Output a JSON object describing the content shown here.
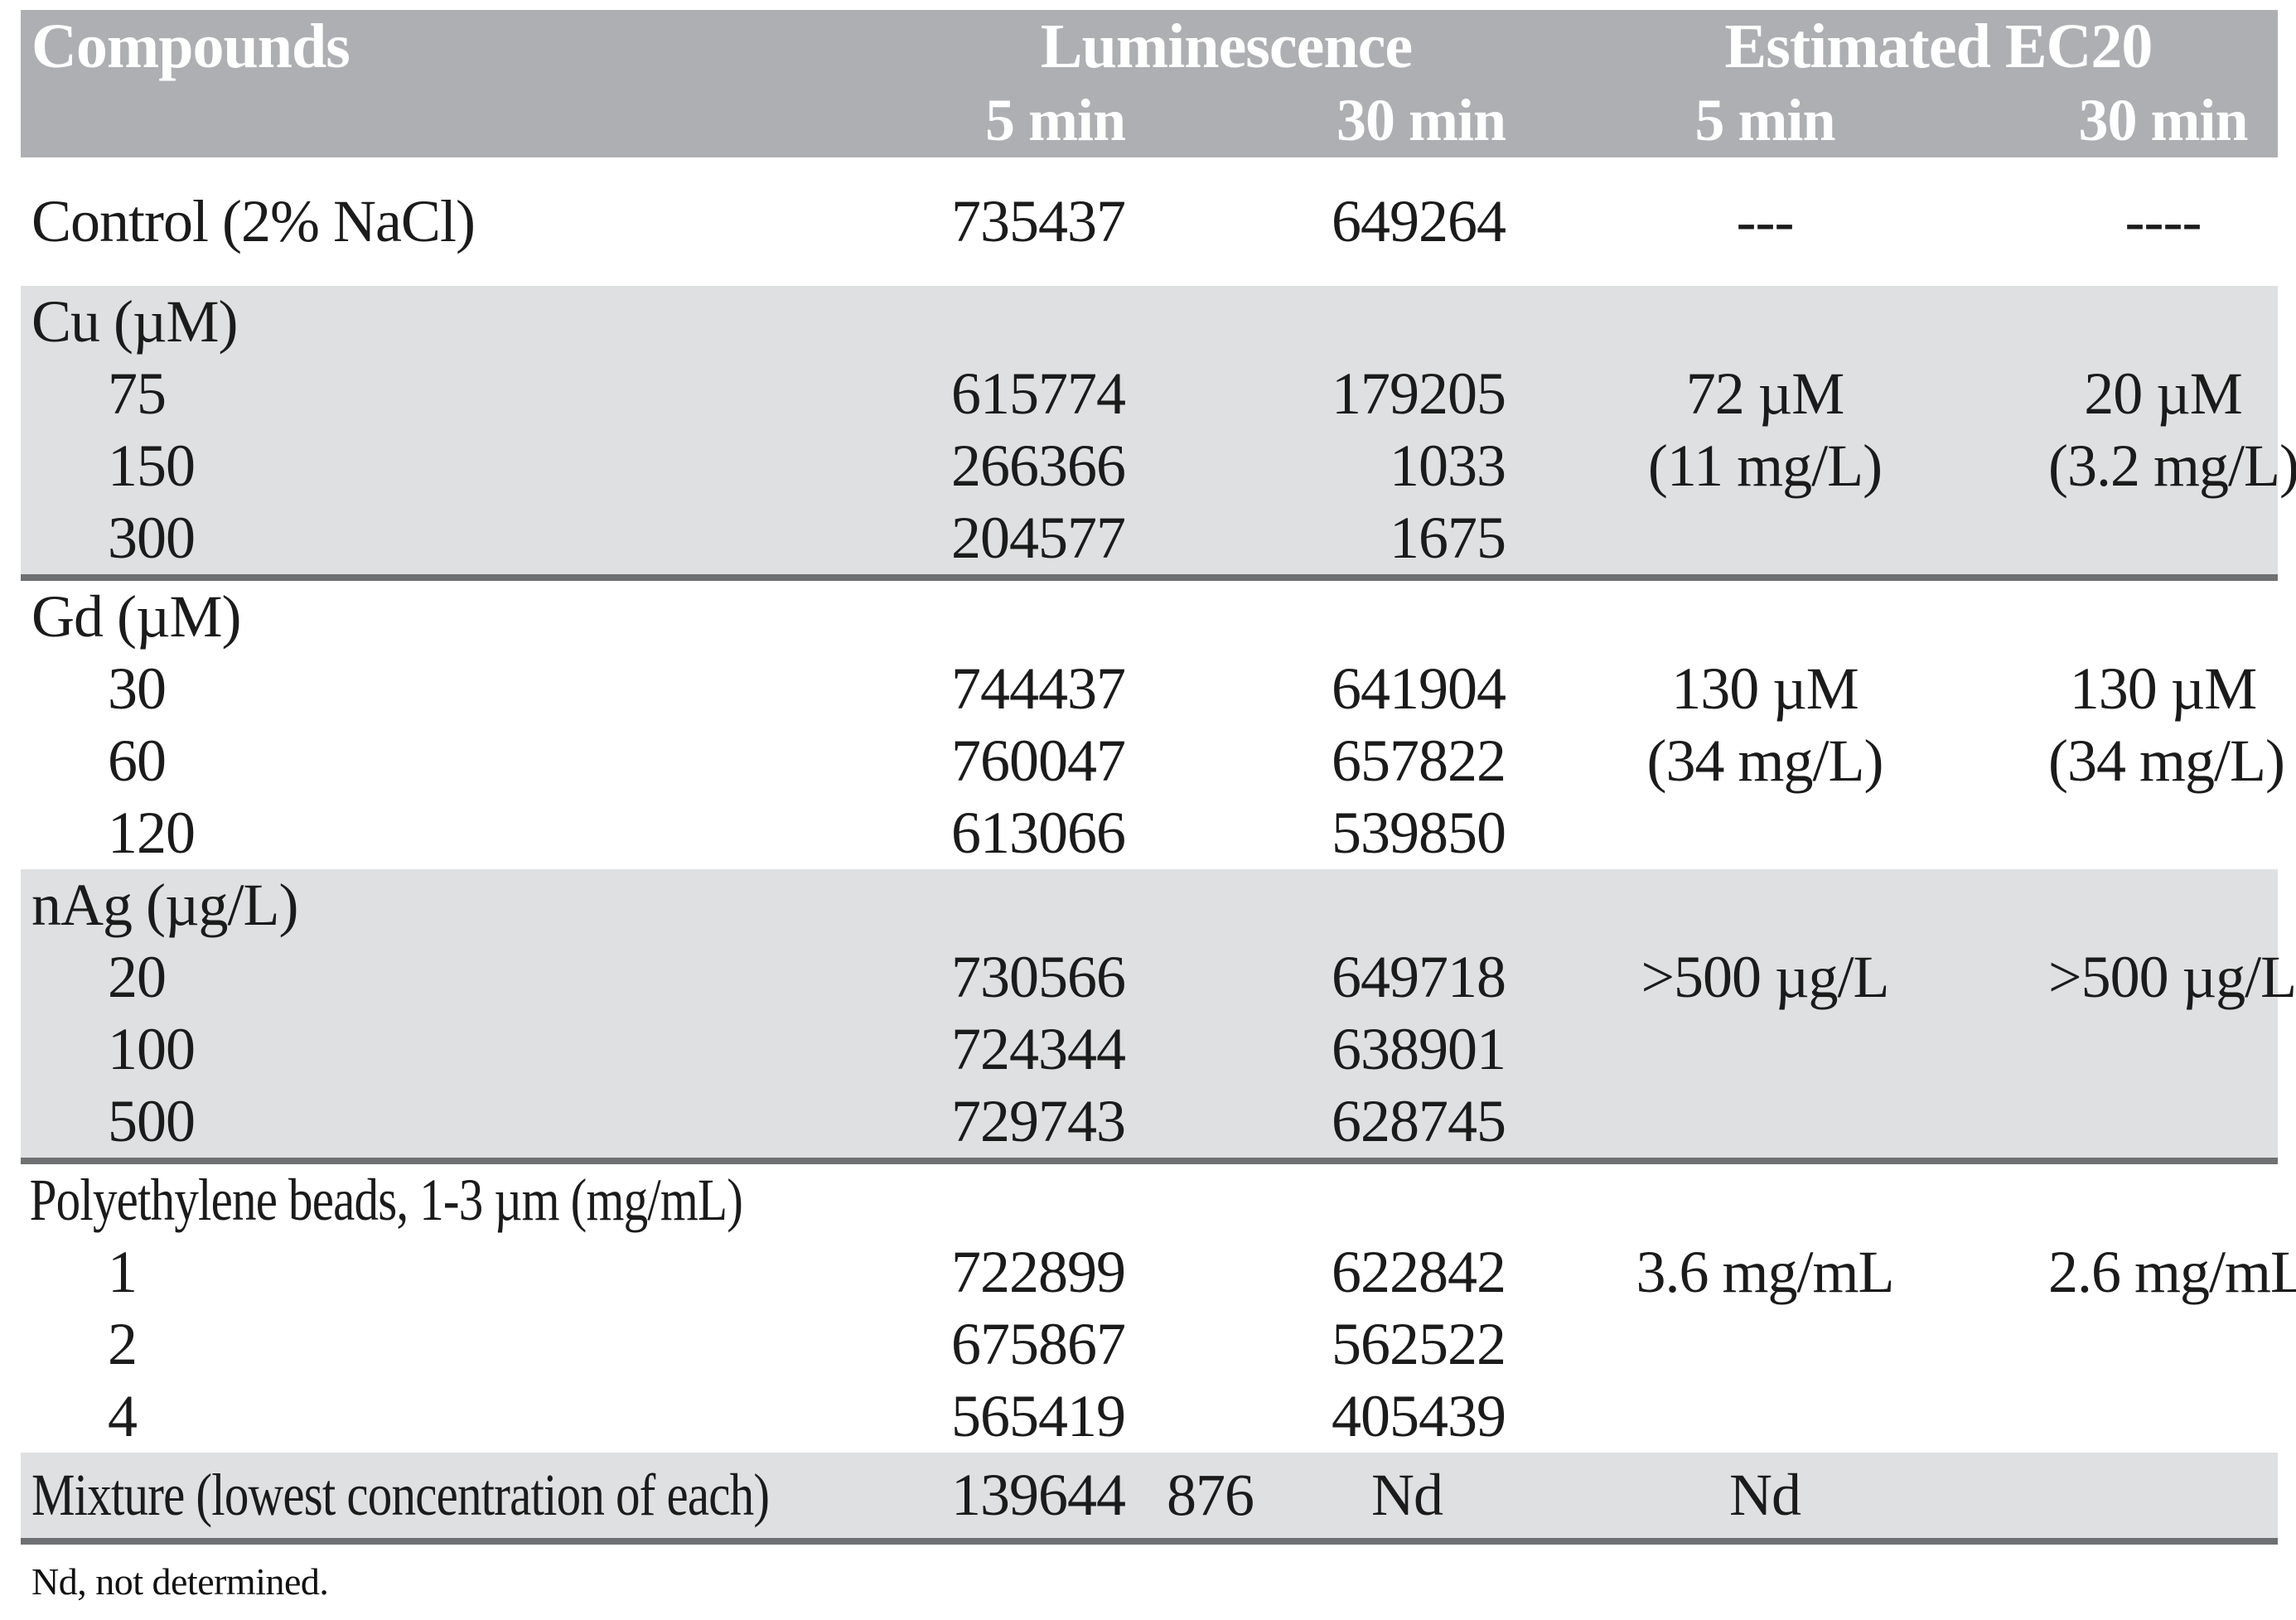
{
  "colors": {
    "header_bg": "#aeafb3",
    "section_bg": "#dfe0e1",
    "rule": "#6e7072",
    "header_text": "#ffffff",
    "body_text": "#1b1b1b"
  },
  "table": {
    "header": {
      "compounds": "Compounds",
      "luminescence": "Luminescence",
      "estimated_ec20": "Estimated EC20",
      "lum_5min": "5 min",
      "lum_30min": "30 min",
      "ec_5min": "5 min",
      "ec_30min": "30 min"
    },
    "control_row": {
      "label": "Control (2% NaCl)",
      "lum5": "735437",
      "lum30": "649264",
      "ec5": "---",
      "ec30": "----"
    },
    "sections": [
      {
        "header": "Cu (µM)",
        "shaded": true,
        "rule_below": true,
        "rows": [
          {
            "label": "75",
            "lum5": "615774",
            "lum30": "179205",
            "ec5": "72 µM",
            "ec30": "20 µM"
          },
          {
            "label": "150",
            "lum5": "266366",
            "lum30": "1033",
            "ec5": "(11 mg/L)",
            "ec30": "(3.2 mg/L)"
          },
          {
            "label": "300",
            "lum5": "204577",
            "lum30": "1675",
            "ec5": "",
            "ec30": ""
          }
        ]
      },
      {
        "header": "Gd (µM)",
        "shaded": false,
        "rule_below": false,
        "rows": [
          {
            "label": "30",
            "lum5": "744437",
            "lum30": "641904",
            "ec5": "130 µM",
            "ec30": "130 µM"
          },
          {
            "label": "60",
            "lum5": "760047",
            "lum30": "657822",
            "ec5": "(34 mg/L)",
            "ec30": "(34 mg/L)"
          },
          {
            "label": "120",
            "lum5": "613066",
            "lum30": "539850",
            "ec5": "",
            "ec30": ""
          }
        ]
      },
      {
        "header": "nAg (µg/L)",
        "shaded": true,
        "rule_below": true,
        "rows": [
          {
            "label": "20",
            "lum5": "730566",
            "lum30": "649718",
            "ec5": ">500 µg/L",
            "ec30": ">500 µg/L"
          },
          {
            "label": "100",
            "lum5": "724344",
            "lum30": "638901",
            "ec5": "",
            "ec30": ""
          },
          {
            "label": "500",
            "lum5": "729743",
            "lum30": "628745",
            "ec5": "",
            "ec30": ""
          }
        ]
      },
      {
        "header": "Polyethylene beads, 1-3 µm (mg/mL)",
        "shaded": false,
        "rule_below": false,
        "rows": [
          {
            "label": "1",
            "lum5": "722899",
            "lum30": "622842",
            "ec5": "3.6 mg/mL",
            "ec30": "2.6 mg/mL"
          },
          {
            "label": "2",
            "lum5": "675867",
            "lum30": "562522",
            "ec5": "",
            "ec30": ""
          },
          {
            "label": "4",
            "lum5": "565419",
            "lum30": "405439",
            "ec5": "",
            "ec30": ""
          }
        ]
      }
    ],
    "mixture_row": {
      "label": "Mixture (lowest concentration of each)",
      "lum5": "139644",
      "offset_value": "876",
      "lum30": "Nd",
      "ec5": "Nd",
      "ec30": ""
    },
    "footnote": "Nd, not determined."
  }
}
